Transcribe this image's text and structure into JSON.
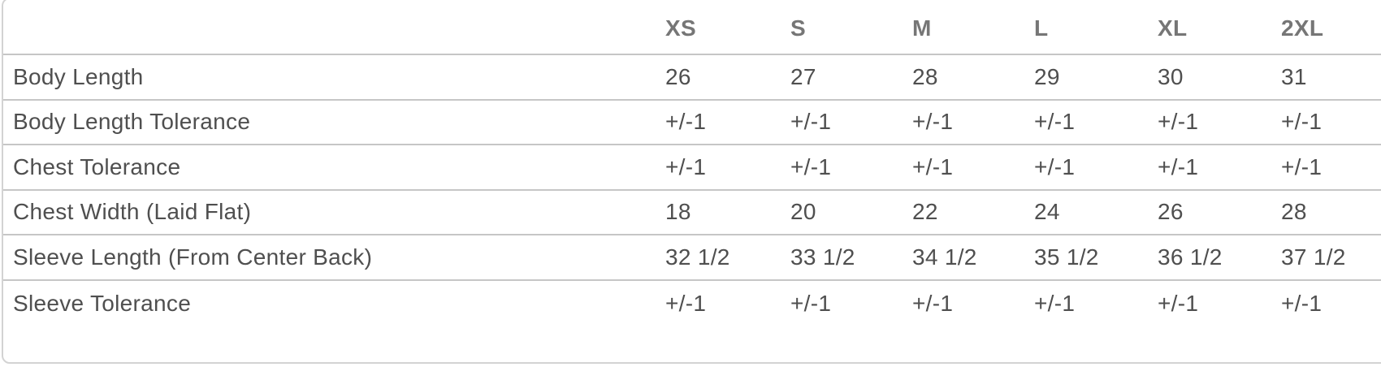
{
  "table": {
    "columns": [
      "XS",
      "S",
      "M",
      "L",
      "XL",
      "2XL"
    ],
    "rows": [
      {
        "label": "Body Length",
        "values": [
          "26",
          "27",
          "28",
          "29",
          "30",
          "31"
        ]
      },
      {
        "label": "Body Length Tolerance",
        "values": [
          "+/-1",
          "+/-1",
          "+/-1",
          "+/-1",
          "+/-1",
          "+/-1"
        ]
      },
      {
        "label": "Chest Tolerance",
        "values": [
          "+/-1",
          "+/-1",
          "+/-1",
          "+/-1",
          "+/-1",
          "+/-1"
        ]
      },
      {
        "label": "Chest Width (Laid Flat)",
        "values": [
          "18",
          "20",
          "22",
          "24",
          "26",
          "28"
        ]
      },
      {
        "label": "Sleeve Length (From Center Back)",
        "values": [
          "32 1/2",
          "33 1/2",
          "34 1/2",
          "35 1/2",
          "36 1/2",
          "37 1/2"
        ]
      },
      {
        "label": "Sleeve Tolerance",
        "values": [
          "+/-1",
          "+/-1",
          "+/-1",
          "+/-1",
          "+/-1",
          "+/-1"
        ]
      }
    ]
  },
  "colors": {
    "text": "#4f4f4f",
    "header_text": "#767676",
    "row_line": "#c6c6c6",
    "outer_border": "#d3d3d3"
  }
}
